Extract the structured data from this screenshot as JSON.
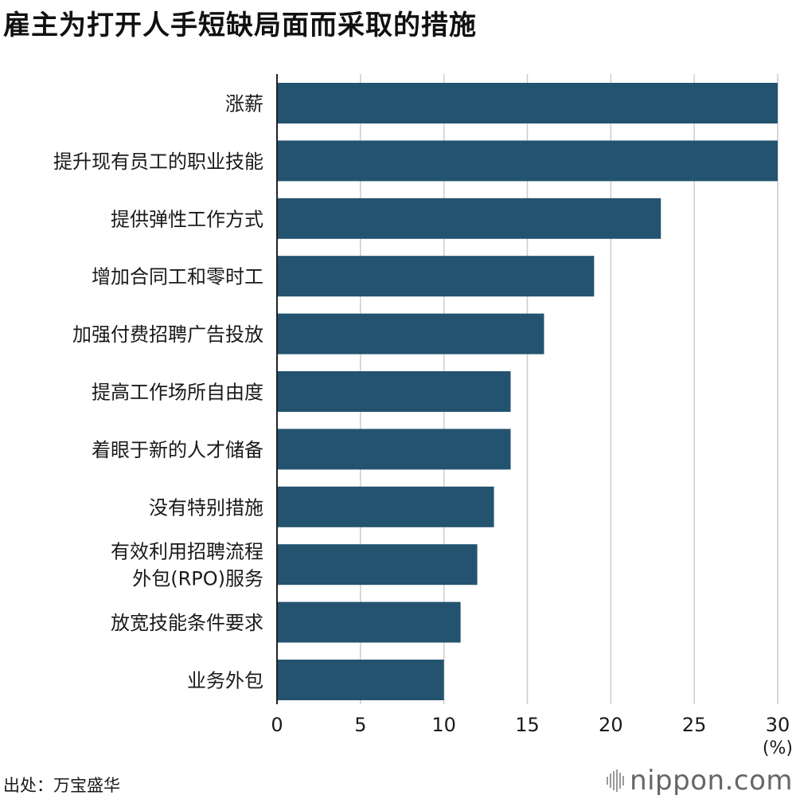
{
  "title": "雇主为打开人手短缺局面而采取的措施",
  "source": "出处：万宝盛华",
  "logo": {
    "text": "nippon.com",
    "icon": "sound-bars-icon"
  },
  "chart_data": {
    "type": "bar",
    "orientation": "horizontal",
    "title": "雇主为打开人手短缺局面而采取的措施",
    "unit": "(%)",
    "categories": [
      [
        "涨薪"
      ],
      [
        "提升现有员工的职业技能"
      ],
      [
        "提供弹性工作方式"
      ],
      [
        "增加合同工和零时工"
      ],
      [
        "加强付费招聘广告投放"
      ],
      [
        "提高工作场所自由度"
      ],
      [
        "着眼于新的人才储备"
      ],
      [
        "没有特别措施"
      ],
      [
        "有效利用招聘流程",
        "外包(RPO)服务"
      ],
      [
        "放宽技能条件要求"
      ],
      [
        "业务外包"
      ]
    ],
    "values": [
      30,
      30,
      23,
      19,
      16,
      14,
      14,
      13,
      12,
      11,
      10
    ],
    "xlim": [
      0,
      30
    ],
    "xticks": [
      "0",
      "5",
      "10",
      "15",
      "20",
      "25",
      "30"
    ],
    "grid": true,
    "colors": {
      "bar": "#23536f",
      "grid": "#cccccc",
      "axis": "#222222"
    }
  }
}
